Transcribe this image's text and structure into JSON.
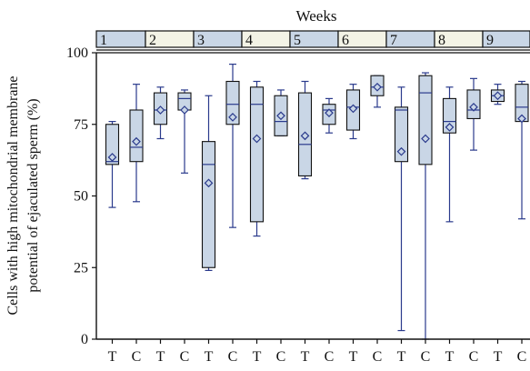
{
  "chart_data": {
    "type": "box",
    "top_label": "Weeks",
    "ylabel_line1": "Cells with high mitochondrial membrane",
    "ylabel_line2": "potential of ejaculated sperm (%)",
    "ylim": [
      0,
      100
    ],
    "yticks": [
      0,
      25,
      50,
      75,
      100
    ],
    "grid": false,
    "colors": {
      "box_fill": "#c9d6e6",
      "whisker": "#2a3a8c",
      "header_alt": "#f3f3e6"
    },
    "week_labels": [
      "1",
      "2",
      "3",
      "4",
      "5",
      "6",
      "7",
      "8",
      "9"
    ],
    "categories": [
      "T",
      "C",
      "T",
      "C",
      "T",
      "C",
      "T",
      "C",
      "T",
      "C",
      "T",
      "C",
      "T",
      "C",
      "T",
      "C",
      "T",
      "C"
    ],
    "boxes": [
      {
        "week": "1",
        "group": "T",
        "min": 46,
        "q1": 61,
        "median": 62,
        "q3": 75,
        "max": 76,
        "mean": 63.5
      },
      {
        "week": "1",
        "group": "C",
        "min": 48,
        "q1": 62,
        "median": 67,
        "q3": 80,
        "max": 89,
        "mean": 69
      },
      {
        "week": "2",
        "group": "T",
        "min": 70,
        "q1": 75,
        "median": 80,
        "q3": 86,
        "max": 88,
        "mean": 80
      },
      {
        "week": "2",
        "group": "C",
        "min": 58,
        "q1": 80,
        "median": 84,
        "q3": 86,
        "max": 87,
        "mean": 80
      },
      {
        "week": "3",
        "group": "T",
        "min": 24,
        "q1": 25,
        "median": 61,
        "q3": 69,
        "max": 85,
        "mean": 54.5
      },
      {
        "week": "3",
        "group": "C",
        "min": 39,
        "q1": 75,
        "median": 82,
        "q3": 90,
        "max": 96,
        "mean": 77.5
      },
      {
        "week": "4",
        "group": "T",
        "min": 36,
        "q1": 41,
        "median": 82,
        "q3": 88,
        "max": 90,
        "mean": 70
      },
      {
        "week": "4",
        "group": "C",
        "min": 71,
        "q1": 71,
        "median": 76,
        "q3": 85,
        "max": 87,
        "mean": 78
      },
      {
        "week": "5",
        "group": "T",
        "min": 56,
        "q1": 57,
        "median": 68,
        "q3": 86,
        "max": 90,
        "mean": 71
      },
      {
        "week": "5",
        "group": "C",
        "min": 72,
        "q1": 75,
        "median": 80,
        "q3": 82,
        "max": 84,
        "mean": 79
      },
      {
        "week": "6",
        "group": "T",
        "min": 70,
        "q1": 73,
        "median": 81,
        "q3": 87,
        "max": 89,
        "mean": 80.5
      },
      {
        "week": "6",
        "group": "C",
        "min": 81,
        "q1": 85,
        "median": 88,
        "q3": 92,
        "max": 92,
        "mean": 88
      },
      {
        "week": "7",
        "group": "T",
        "min": 3,
        "q1": 62,
        "median": 80,
        "q3": 81,
        "max": 88,
        "mean": 65.5
      },
      {
        "week": "7",
        "group": "C",
        "min": 0,
        "q1": 61,
        "median": 86,
        "q3": 92,
        "max": 93,
        "mean": 70
      },
      {
        "week": "8",
        "group": "T",
        "min": 41,
        "q1": 72,
        "median": 76,
        "q3": 84,
        "max": 88,
        "mean": 74
      },
      {
        "week": "8",
        "group": "C",
        "min": 66,
        "q1": 77,
        "median": 80,
        "q3": 87,
        "max": 91,
        "mean": 81
      },
      {
        "week": "9",
        "group": "T",
        "min": 82,
        "q1": 83,
        "median": 85,
        "q3": 87,
        "max": 89,
        "mean": 85
      },
      {
        "week": "9",
        "group": "C",
        "min": 42,
        "q1": 76,
        "median": 81,
        "q3": 89,
        "max": 90,
        "mean": 77
      }
    ]
  }
}
